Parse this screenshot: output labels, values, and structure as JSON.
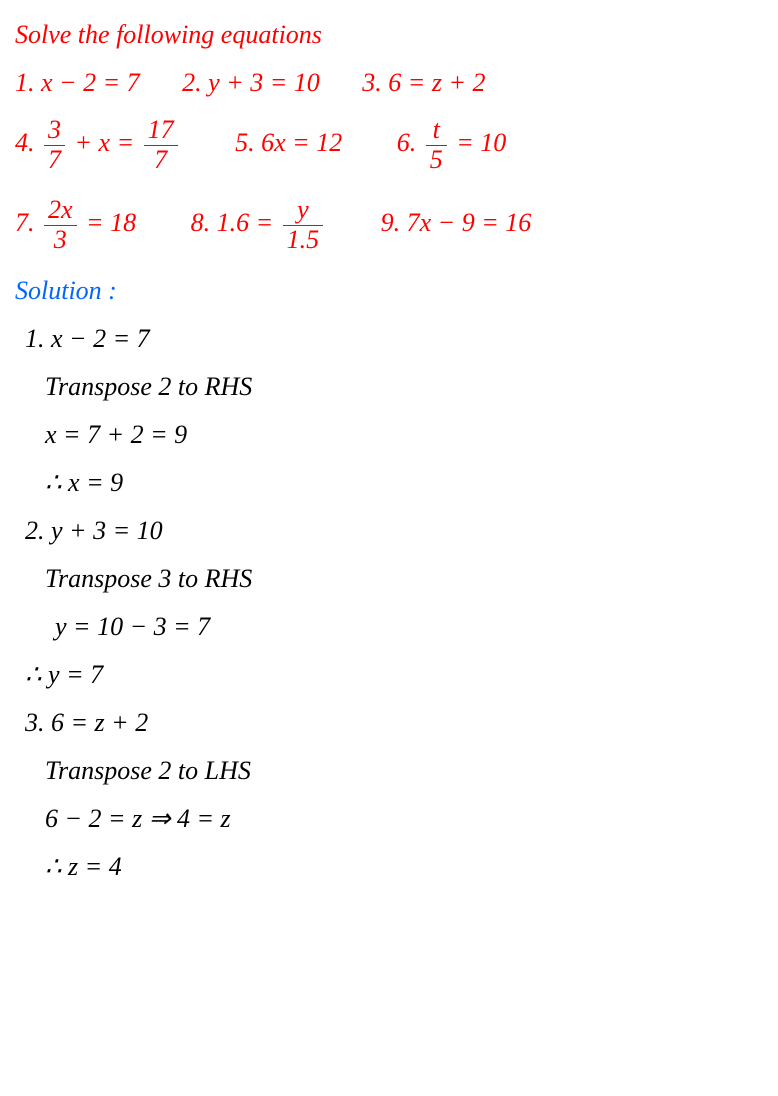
{
  "colors": {
    "problem": "#ff0000",
    "solution_label": "#0066ff",
    "solution": "#000000",
    "background": "#ffffff"
  },
  "typography": {
    "font_family": "Georgia, Times New Roman, serif",
    "font_style": "italic",
    "font_size": 26
  },
  "header": "Solve the following equations",
  "problems": {
    "row1": {
      "p1": "1. x − 2 = 7",
      "p2": "2. y + 3 = 10",
      "p3": "3. 6 = z + 2"
    },
    "row2": {
      "p4_prefix": "4. ",
      "p4_frac1_num": "3",
      "p4_frac1_den": "7",
      "p4_mid": " + x = ",
      "p4_frac2_num": "17",
      "p4_frac2_den": "7",
      "p5": "5. 6x = 12",
      "p6_prefix": "6. ",
      "p6_frac_num": "t",
      "p6_frac_den": "5",
      "p6_suffix": " = 10"
    },
    "row3": {
      "p7_prefix": "7. ",
      "p7_frac_num": "2x",
      "p7_frac_den": "3",
      "p7_suffix": " = 18",
      "p8_prefix": "8. 1.6 = ",
      "p8_frac_num": "y",
      "p8_frac_den": "1.5",
      "p9": "9. 7x − 9 = 16"
    }
  },
  "solution_label": "Solution :",
  "solutions": {
    "s1": {
      "eq": "1. x − 2 = 7",
      "step1": "Transpose 2 to RHS",
      "step2": "x = 7 + 2 = 9",
      "result": "∴  x = 9"
    },
    "s2": {
      "eq": "2. y + 3 = 10",
      "step1": "Transpose 3 to RHS",
      "step2": " y = 10 − 3 = 7",
      "result": "∴  y = 7"
    },
    "s3": {
      "eq": "3.  6 = z + 2",
      "step1": "Transpose 2 to LHS",
      "step2": "6 − 2 = z  ⇒    4 = z",
      "result": " ∴  z = 4"
    }
  }
}
